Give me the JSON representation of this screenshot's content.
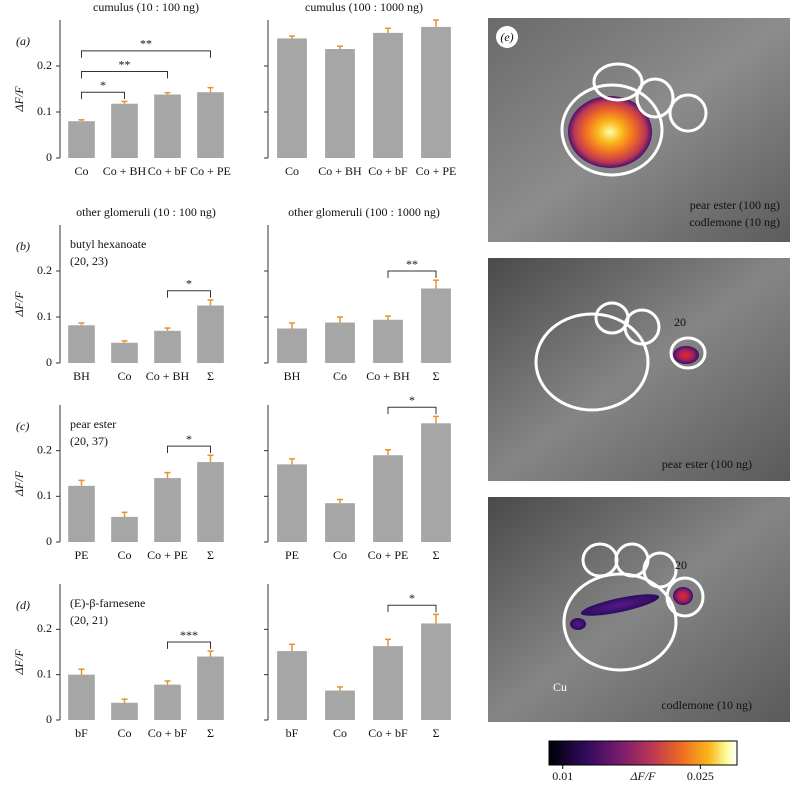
{
  "chart_data": [
    {
      "type": "bar",
      "panel": "(a)",
      "title": "cumulus (10 : 100 ng)",
      "ylabel": "ΔF/F",
      "categories": [
        "Co",
        "Co + BH",
        "Co + bF",
        "Co + PE"
      ],
      "values": [
        0.08,
        0.118,
        0.138,
        0.143
      ],
      "errors": [
        0.003,
        0.005,
        0.004,
        0.01
      ],
      "ylim": [
        0,
        0.3
      ],
      "yticks": [
        0,
        0.1,
        0.2
      ],
      "ytick_labels": true,
      "color": "#a6a6a6",
      "error_color": "#e8922e",
      "brackets": [
        {
          "from": "Co",
          "to": "Co + BH",
          "label": "*"
        },
        {
          "from": "Co",
          "to": "Co + bF",
          "label": "**"
        },
        {
          "from": "Co",
          "to": "Co + PE",
          "label": "**"
        }
      ]
    },
    {
      "type": "bar",
      "title": "cumulus (100 : 1000 ng)",
      "categories": [
        "Co",
        "Co + BH",
        "Co + bF",
        "Co + PE"
      ],
      "values": [
        0.26,
        0.237,
        0.272,
        0.285
      ],
      "errors": [
        0.005,
        0.006,
        0.01,
        0.015
      ],
      "ylim": [
        0,
        0.3
      ],
      "yticks": [
        0,
        0.1,
        0.2
      ],
      "ytick_labels": false,
      "color": "#a6a6a6",
      "error_color": "#e8922e",
      "brackets": []
    },
    {
      "type": "bar",
      "panel": "(b)",
      "title": "other glomeruli (10 : 100 ng)",
      "ylabel": "ΔF/F",
      "annotation": [
        "butyl hexanoate",
        "(20, 23)"
      ],
      "categories": [
        "BH",
        "Co",
        "Co + BH",
        "Σ"
      ],
      "values": [
        0.082,
        0.044,
        0.07,
        0.125
      ],
      "errors": [
        0.005,
        0.004,
        0.006,
        0.012
      ],
      "ylim": [
        0,
        0.3
      ],
      "yticks": [
        0,
        0.1,
        0.2
      ],
      "ytick_labels": true,
      "color": "#a6a6a6",
      "error_color": "#e8922e",
      "brackets": [
        {
          "from": "Co + BH",
          "to": "Σ",
          "label": "*"
        }
      ]
    },
    {
      "type": "bar",
      "title": "other glomeruli (100 : 1000 ng)",
      "categories": [
        "BH",
        "Co",
        "Co + BH",
        "Σ"
      ],
      "values": [
        0.075,
        0.088,
        0.094,
        0.162
      ],
      "errors": [
        0.012,
        0.012,
        0.008,
        0.018
      ],
      "ylim": [
        0,
        0.3
      ],
      "yticks": [
        0,
        0.1,
        0.2
      ],
      "ytick_labels": false,
      "color": "#a6a6a6",
      "error_color": "#e8922e",
      "brackets": [
        {
          "from": "Co + BH",
          "to": "Σ",
          "label": "**"
        }
      ]
    },
    {
      "type": "bar",
      "panel": "(c)",
      "ylabel": "ΔF/F",
      "annotation": [
        "pear ester",
        "(20, 37)"
      ],
      "categories": [
        "PE",
        "Co",
        "Co + PE",
        "Σ"
      ],
      "values": [
        0.123,
        0.055,
        0.14,
        0.175
      ],
      "errors": [
        0.012,
        0.01,
        0.012,
        0.015
      ],
      "ylim": [
        0,
        0.3
      ],
      "yticks": [
        0,
        0.1,
        0.2
      ],
      "ytick_labels": true,
      "color": "#a6a6a6",
      "error_color": "#e8922e",
      "brackets": [
        {
          "from": "Co + PE",
          "to": "Σ",
          "label": "*"
        }
      ]
    },
    {
      "type": "bar",
      "categories": [
        "PE",
        "Co",
        "Co + PE",
        "Σ"
      ],
      "values": [
        0.17,
        0.085,
        0.19,
        0.26
      ],
      "errors": [
        0.012,
        0.008,
        0.012,
        0.015
      ],
      "ylim": [
        0,
        0.3
      ],
      "yticks": [
        0,
        0.1,
        0.2
      ],
      "ytick_labels": false,
      "color": "#a6a6a6",
      "error_color": "#e8922e",
      "brackets": [
        {
          "from": "Co + PE",
          "to": "Σ",
          "label": "*"
        }
      ]
    },
    {
      "type": "bar",
      "panel": "(d)",
      "ylabel": "ΔF/F",
      "annotation": [
        "(E)-β-farnesene",
        "(20, 21)"
      ],
      "categories": [
        "bF",
        "Co",
        "Co + bF",
        "Σ"
      ],
      "values": [
        0.1,
        0.038,
        0.078,
        0.14
      ],
      "errors": [
        0.012,
        0.008,
        0.008,
        0.012
      ],
      "ylim": [
        0,
        0.3
      ],
      "yticks": [
        0,
        0.1,
        0.2
      ],
      "ytick_labels": true,
      "color": "#a6a6a6",
      "error_color": "#e8922e",
      "brackets": [
        {
          "from": "Co + bF",
          "to": "Σ",
          "label": "***"
        }
      ]
    },
    {
      "type": "bar",
      "categories": [
        "bF",
        "Co",
        "Co + bF",
        "Σ"
      ],
      "values": [
        0.152,
        0.065,
        0.163,
        0.213
      ],
      "errors": [
        0.015,
        0.008,
        0.015,
        0.02
      ],
      "ylim": [
        0,
        0.3
      ],
      "yticks": [
        0,
        0.1,
        0.2
      ],
      "ytick_labels": false,
      "color": "#a6a6a6",
      "error_color": "#e8922e",
      "brackets": [
        {
          "from": "Co + bF",
          "to": "Σ",
          "label": "*"
        }
      ]
    }
  ],
  "image_panel": {
    "label": "(e)",
    "images": [
      {
        "captions": [
          "pear ester (100 ng)",
          "codlemone (10 ng)"
        ]
      },
      {
        "labels": [
          "20"
        ],
        "captions": [
          "pear ester (100 ng)"
        ]
      },
      {
        "labels": [
          "20",
          "Cu"
        ],
        "captions": [
          "codlemone (10 ng)"
        ]
      }
    ],
    "colorbar": {
      "label": "ΔF/F",
      "lim": [
        0.0085,
        0.029
      ],
      "ticks": [
        0.01,
        0.025
      ]
    }
  }
}
